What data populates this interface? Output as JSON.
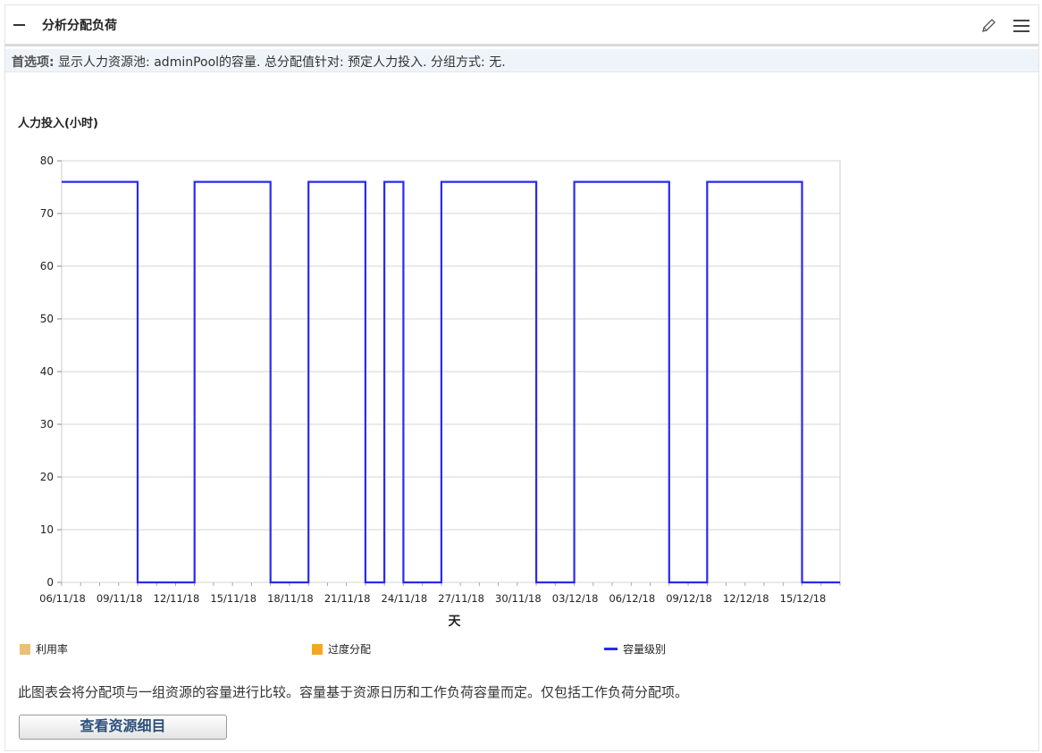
{
  "header": {
    "title": "分析分配负荷"
  },
  "preferences": {
    "label": "首选项:",
    "text": " 显示人力资源池: adminPool的容量. 总分配值针对: 预定人力投入. 分组方式: 无."
  },
  "chart_data": {
    "type": "line",
    "title": "人力投入(小时)",
    "xlabel": "天",
    "ylabel": "",
    "ylim": [
      0,
      80
    ],
    "yticks": [
      0,
      10,
      20,
      30,
      40,
      50,
      60,
      70,
      80
    ],
    "xlim_day_index": [
      0,
      41
    ],
    "x_tick_labels": [
      "06/11/18",
      "09/11/18",
      "12/11/18",
      "15/11/18",
      "18/11/18",
      "21/11/18",
      "24/11/18",
      "27/11/18",
      "30/11/18",
      "03/12/18",
      "06/12/18",
      "09/12/18",
      "12/12/18",
      "15/12/18"
    ],
    "grid": true,
    "legend_placement": "bottom",
    "series": [
      {
        "name": "利用率",
        "color": "#e8c07a",
        "values": []
      },
      {
        "name": "过度分配",
        "color": "#f5a623",
        "values": []
      },
      {
        "name": "容量级别",
        "color": "#2a2aee",
        "type": "step",
        "points": [
          [
            0,
            76
          ],
          [
            4,
            76
          ],
          [
            4,
            0
          ],
          [
            7,
            0
          ],
          [
            7,
            76
          ],
          [
            11,
            76
          ],
          [
            11,
            0
          ],
          [
            13,
            0
          ],
          [
            13,
            76
          ],
          [
            16,
            76
          ],
          [
            16,
            0
          ],
          [
            17,
            0
          ],
          [
            17,
            76
          ],
          [
            18,
            76
          ],
          [
            18,
            0
          ],
          [
            20,
            0
          ],
          [
            20,
            76
          ],
          [
            25,
            76
          ],
          [
            25,
            0
          ],
          [
            27,
            0
          ],
          [
            27,
            76
          ],
          [
            32,
            76
          ],
          [
            32,
            0
          ],
          [
            34,
            0
          ],
          [
            34,
            76
          ],
          [
            39,
            76
          ],
          [
            39,
            0
          ],
          [
            41,
            0
          ]
        ]
      }
    ]
  },
  "description": "此图表会将分配项与一组资源的容量进行比较。容量基于资源日历和工作负荷容量而定。仅包括工作负荷分配项。",
  "buttons": {
    "view_details": "查看资源细目"
  }
}
